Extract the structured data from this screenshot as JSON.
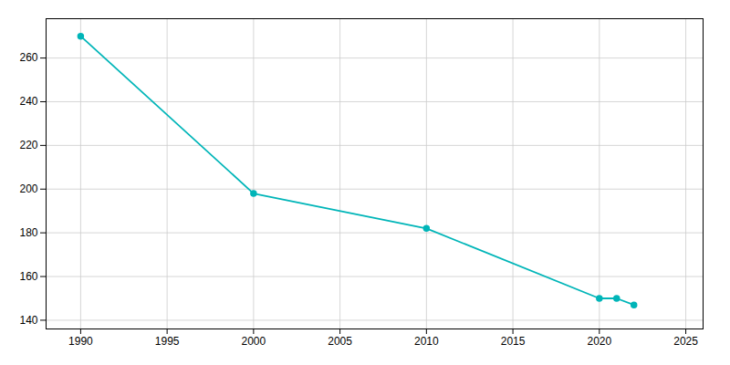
{
  "chart_data": {
    "type": "line",
    "x": [
      1990,
      2000,
      2010,
      2020,
      2021,
      2022
    ],
    "values": [
      270,
      198,
      182,
      150,
      150,
      147
    ],
    "color": "#00b5b8",
    "marker": "circle",
    "xlim": [
      1988,
      2026
    ],
    "ylim": [
      136,
      278
    ],
    "xticks": [
      1990,
      1995,
      2000,
      2005,
      2010,
      2015,
      2020,
      2025
    ],
    "yticks": [
      140,
      160,
      180,
      200,
      220,
      240,
      260
    ],
    "grid": true
  }
}
